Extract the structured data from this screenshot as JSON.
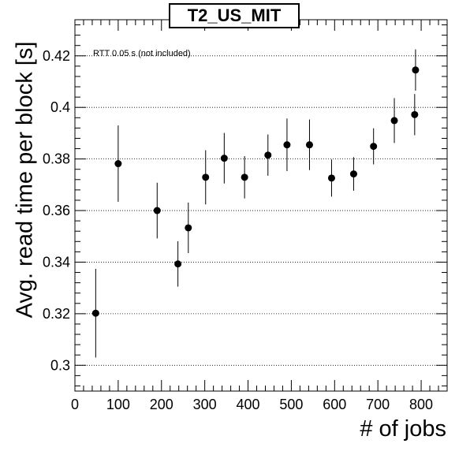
{
  "chart_data": {
    "type": "scatter",
    "title": "T2_US_MIT",
    "annotation": "RTT 0.05 s (not included)",
    "xlabel": "# of jobs",
    "ylabel": "Avg. read time per block [s]",
    "xlim": [
      0,
      860
    ],
    "ylim": [
      0.29,
      0.434
    ],
    "x_ticks": [
      0,
      100,
      200,
      300,
      400,
      500,
      600,
      700,
      800
    ],
    "y_ticks": [
      0.3,
      0.32,
      0.34,
      0.36,
      0.38,
      0.4,
      0.42
    ],
    "y_tick_labels": [
      "0.3",
      "0.32",
      "0.34",
      "0.36",
      "0.38",
      "0.4",
      "0.42"
    ],
    "grid": "horizontal dotted",
    "marker_color": "#000000",
    "points": [
      {
        "x": 48,
        "y": 0.3202,
        "err": 0.0172
      },
      {
        "x": 100,
        "y": 0.3782,
        "err": 0.0148
      },
      {
        "x": 190,
        "y": 0.36,
        "err": 0.0108
      },
      {
        "x": 238,
        "y": 0.3393,
        "err": 0.0088
      },
      {
        "x": 262,
        "y": 0.3533,
        "err": 0.0098
      },
      {
        "x": 302,
        "y": 0.3729,
        "err": 0.0105
      },
      {
        "x": 345,
        "y": 0.3803,
        "err": 0.0098
      },
      {
        "x": 392,
        "y": 0.3729,
        "err": 0.0082
      },
      {
        "x": 446,
        "y": 0.3815,
        "err": 0.008
      },
      {
        "x": 490,
        "y": 0.3855,
        "err": 0.0102
      },
      {
        "x": 542,
        "y": 0.3855,
        "err": 0.0098
      },
      {
        "x": 593,
        "y": 0.3726,
        "err": 0.0072
      },
      {
        "x": 644,
        "y": 0.3742,
        "err": 0.0065
      },
      {
        "x": 690,
        "y": 0.3849,
        "err": 0.007
      },
      {
        "x": 738,
        "y": 0.3949,
        "err": 0.0087
      },
      {
        "x": 785,
        "y": 0.3972,
        "err": 0.008
      },
      {
        "x": 787,
        "y": 0.4145,
        "err": 0.008
      }
    ]
  }
}
